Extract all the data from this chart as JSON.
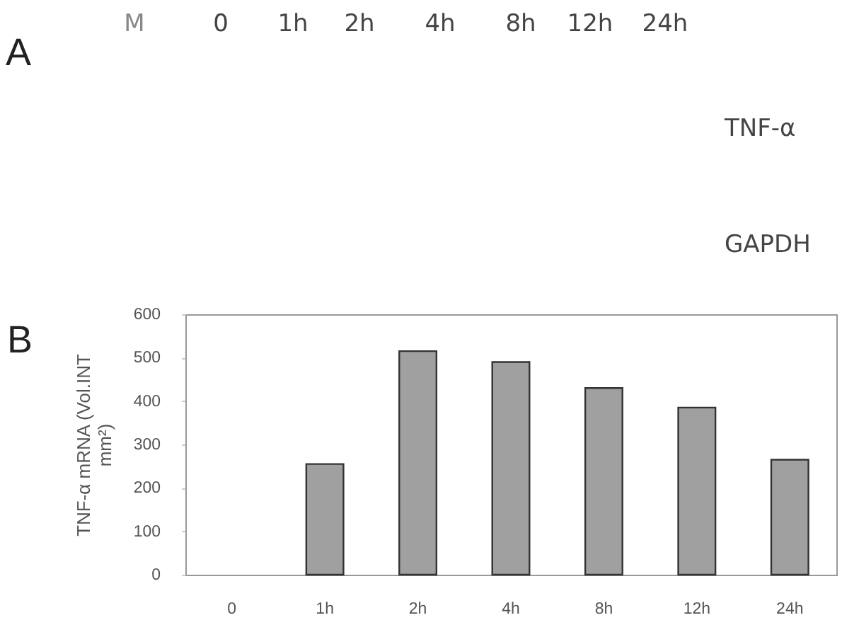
{
  "chart_data": {
    "type": "bar",
    "categories": [
      "0",
      "1h",
      "2h",
      "4h",
      "8h",
      "12h",
      "24h"
    ],
    "values": [
      null,
      255,
      515,
      490,
      430,
      385,
      265
    ],
    "color": "#a0a0a0",
    "ylabel": "TNF-α mRNA (Vol.INT\nmm²)",
    "ylim": [
      0,
      600
    ],
    "yticks": [
      0,
      100,
      200,
      300,
      400,
      500,
      600
    ],
    "annotations": [
      "A",
      "M",
      "0",
      "1h",
      "2h",
      "4h",
      "8h",
      "12h",
      "24h",
      "TNF-α",
      "GAPDH",
      "B"
    ]
  }
}
